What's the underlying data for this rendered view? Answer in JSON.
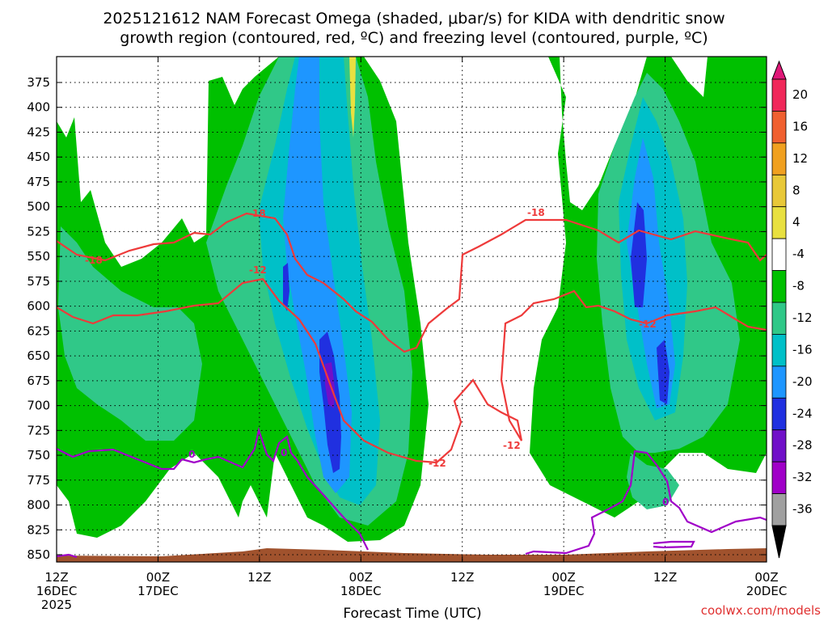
{
  "title": {
    "line1": "2025121612 NAM Forecast Omega (shaded, μbar/s) for KIDA with dendritic snow",
    "line2": "growth region (contoured, red, ºC) and freezing level (contoured, purple, ºC)"
  },
  "credit": "coolwx.com/models",
  "chart_data": {
    "type": "heatmap",
    "title": "2025121612 NAM Forecast Omega (shaded, μbar/s) for KIDA with dendritic snow growth region (contoured, red, ºC) and freezing level (contoured, purple, ºC)",
    "xlabel": "Forecast Time (UTC)",
    "ylabel": "",
    "y_reversed": true,
    "y_ticks": [
      375,
      400,
      425,
      450,
      475,
      500,
      525,
      550,
      575,
      600,
      625,
      650,
      675,
      700,
      725,
      750,
      775,
      800,
      825,
      850
    ],
    "x_hours_range": [
      0,
      84
    ],
    "x_ticks": [
      {
        "hour": 0,
        "line1": "12Z",
        "line2": "16DEC",
        "line3": "2025"
      },
      {
        "hour": 12,
        "line1": "00Z",
        "line2": "17DEC",
        "line3": ""
      },
      {
        "hour": 24,
        "line1": "12Z",
        "line2": "",
        "line3": ""
      },
      {
        "hour": 36,
        "line1": "00Z",
        "line2": "18DEC",
        "line3": ""
      },
      {
        "hour": 48,
        "line1": "12Z",
        "line2": "",
        "line3": ""
      },
      {
        "hour": 60,
        "line1": "00Z",
        "line2": "19DEC",
        "line3": ""
      },
      {
        "hour": 72,
        "line1": "12Z",
        "line2": "",
        "line3": ""
      },
      {
        "hour": 84,
        "line1": "00Z",
        "line2": "20DEC",
        "line3": ""
      }
    ],
    "grid": true,
    "colorbar": {
      "labels": [
        "20",
        "16",
        "12",
        "8",
        "4",
        "-4",
        "-8",
        "-12",
        "-16",
        "-20",
        "-24",
        "-28",
        "-32",
        "-36"
      ],
      "colors": [
        "#f0285a",
        "#f06030",
        "#f0a020",
        "#e8c838",
        "#e8e040",
        "#ffffff",
        "#00c000",
        "#30c888",
        "#00c0c8",
        "#1e96ff",
        "#2030e0",
        "#7010c8",
        "#a000c8",
        "#a0a0a0"
      ]
    },
    "contours": {
      "dgz_red": {
        "color": "#ee3a3a",
        "labels": [
          "-18",
          "-12"
        ],
        "values_c": [
          -18,
          -12
        ]
      },
      "freezing_purple": {
        "color": "#a000c8",
        "labels": [
          "0"
        ],
        "value_c": 0
      }
    },
    "omega_features": [
      {
        "name": "strong-ascent-1",
        "hour_start": 22,
        "hour_end": 45,
        "p_top": 370,
        "p_bot": 840,
        "min_omega": -28
      },
      {
        "name": "strong-ascent-2",
        "hour_start": 59,
        "hour_end": 84,
        "p_top": 370,
        "p_bot": 800,
        "min_omega": -24
      }
    ],
    "terrain_color": "#a0522d"
  }
}
